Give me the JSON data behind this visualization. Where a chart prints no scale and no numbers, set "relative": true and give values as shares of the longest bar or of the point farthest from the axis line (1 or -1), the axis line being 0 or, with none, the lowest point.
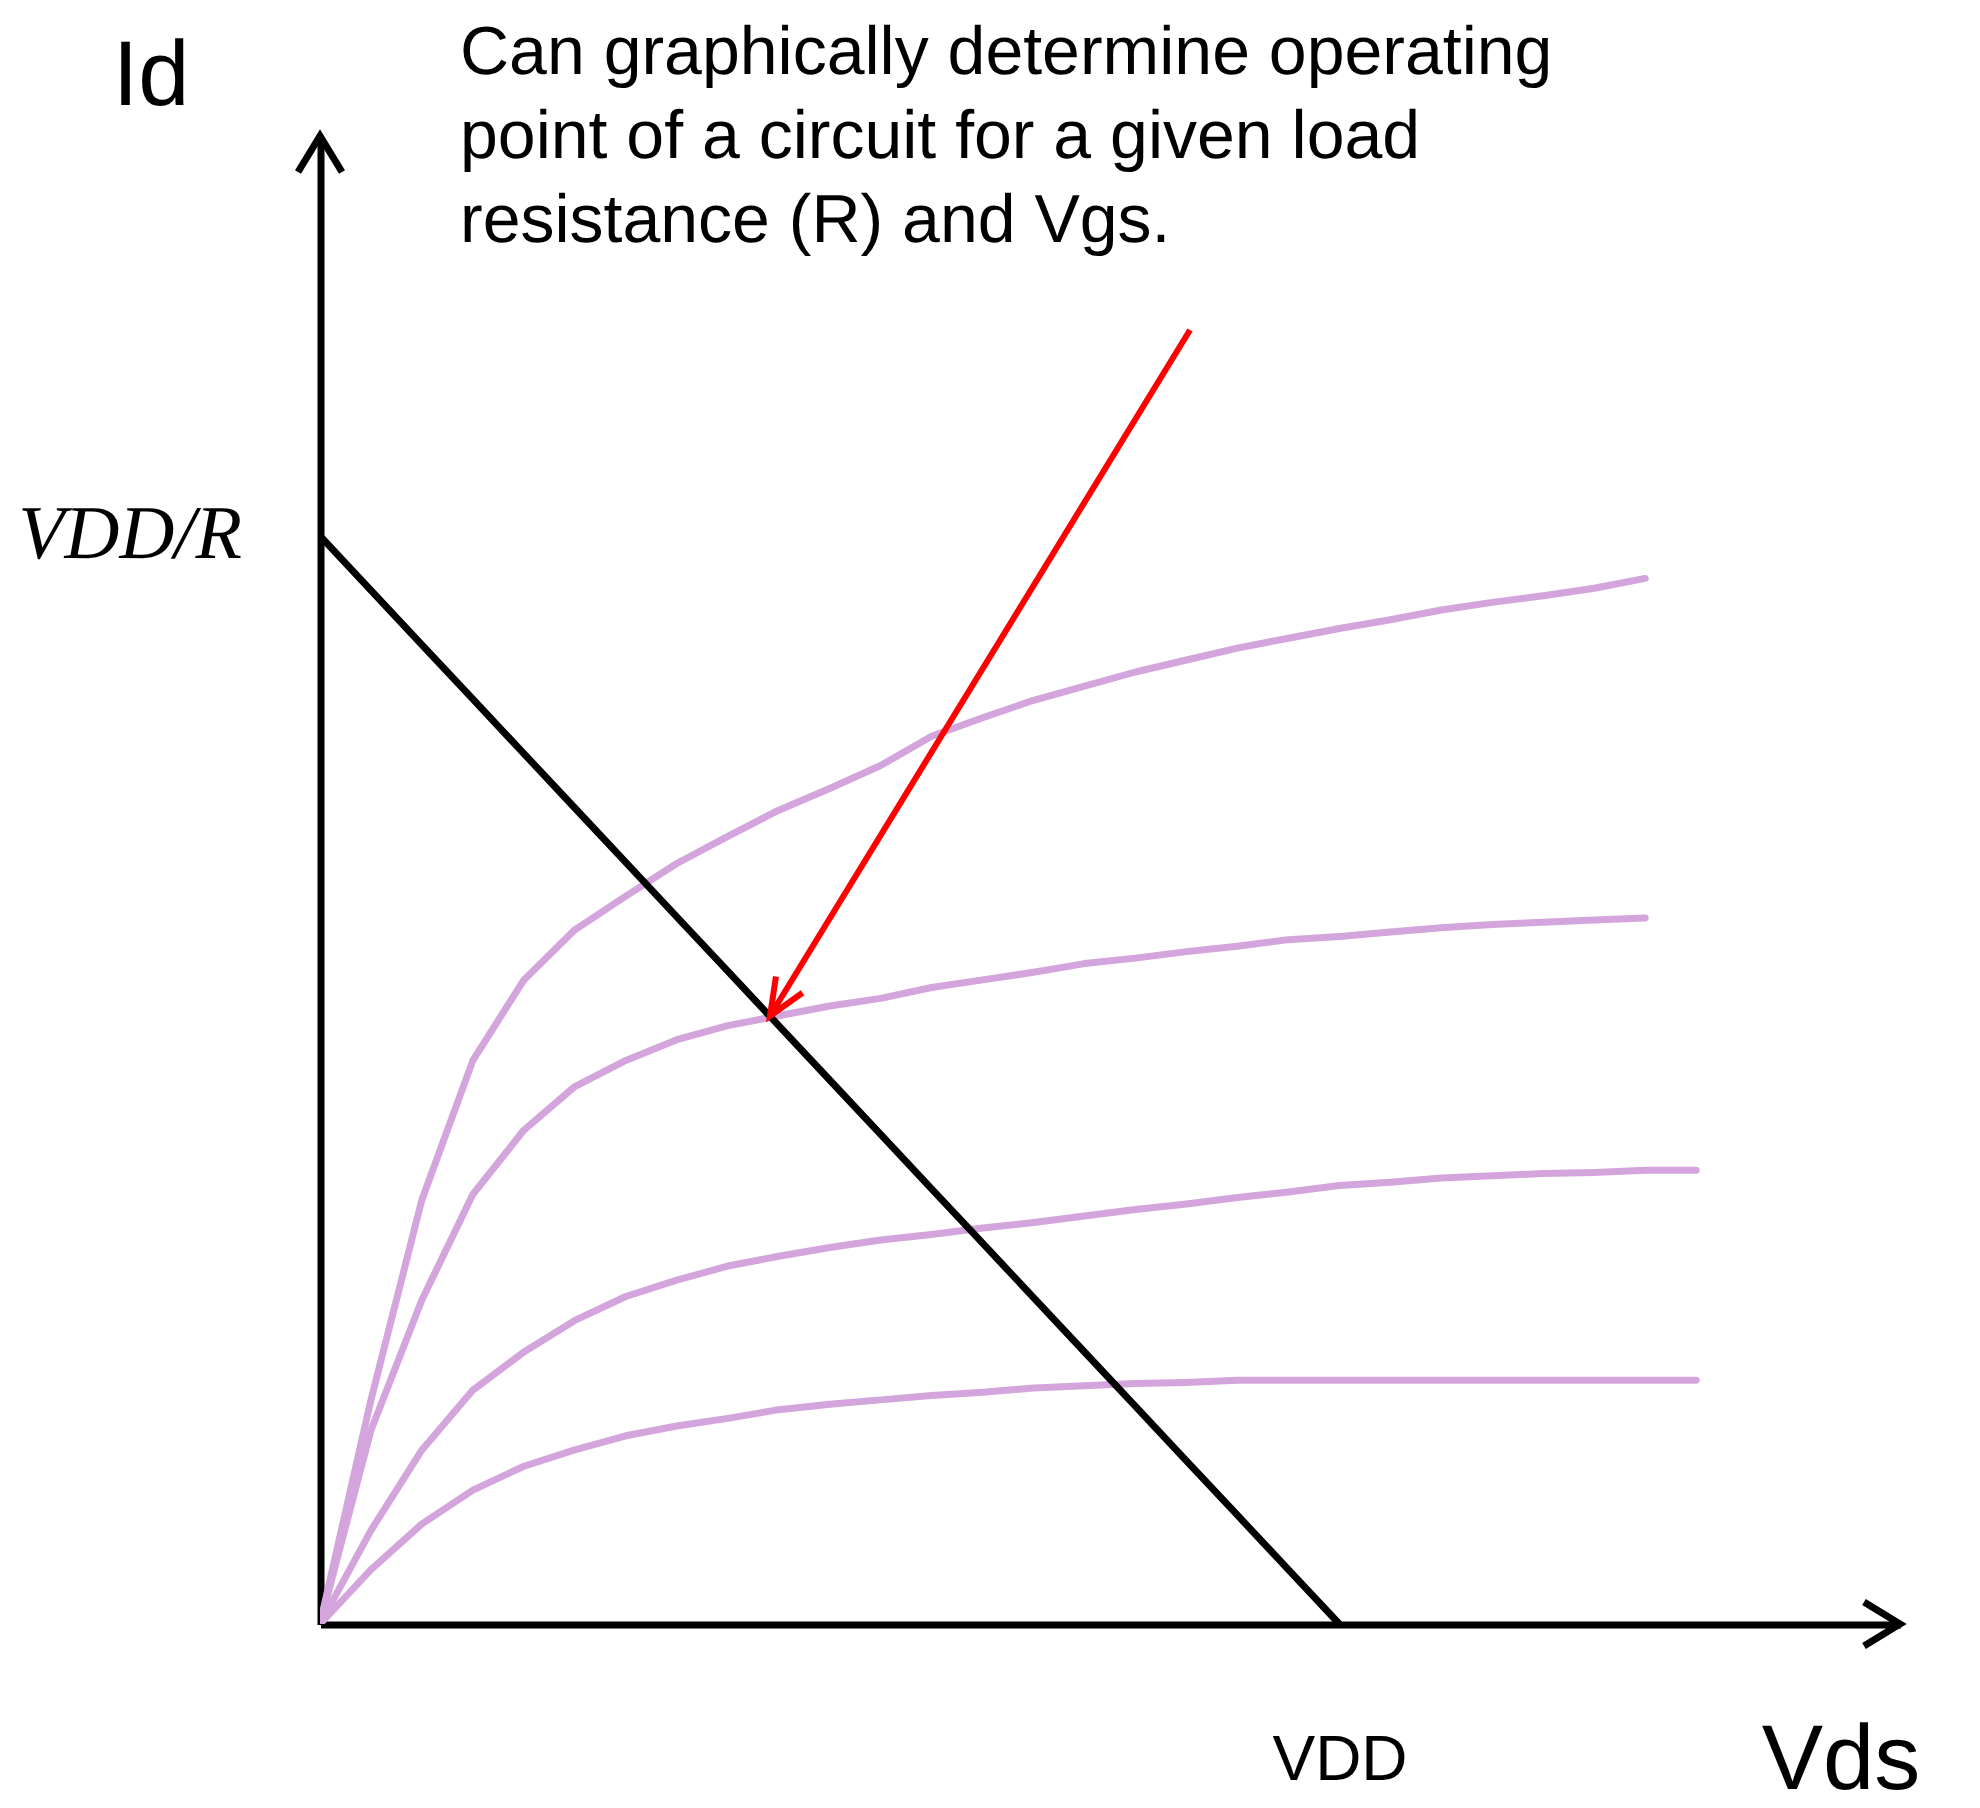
{
  "chart_data": {
    "type": "line",
    "relative": true,
    "xlabel": "Vds",
    "ylabel": "Id",
    "categories": [
      null,
      null,
      null,
      null,
      null,
      null,
      null,
      null,
      null,
      null,
      null,
      null,
      null,
      null,
      null,
      null,
      null,
      null,
      null,
      null,
      null,
      null,
      null,
      null,
      null,
      null,
      null,
      null,
      null,
      null,
      null,
      null
    ],
    "grid": false,
    "legend": false,
    "marker": "none",
    "line_style": "solid",
    "series": [
      {
        "color": "#d4a5dc",
        "values": [
          0,
          0.206,
          0.39,
          0.518,
          0.592,
          0.638,
          0.669,
          0.699,
          0.724,
          0.748,
          0.768,
          0.789,
          0.816,
          0.833,
          0.849,
          0.862,
          0.875,
          0.886,
          0.897,
          0.906,
          0.915,
          0.923,
          0.932,
          0.939,
          0.945,
          0.952,
          0.961,
          null,
          null,
          null,
          null,
          null
        ]
      },
      {
        "color": "#d4a5dc",
        "values": [
          0,
          0.178,
          0.298,
          0.395,
          0.454,
          0.494,
          0.518,
          0.537,
          0.55,
          0.559,
          0.568,
          0.575,
          0.585,
          0.592,
          0.599,
          0.607,
          0.612,
          0.618,
          0.623,
          0.629,
          0.632,
          0.636,
          0.64,
          0.643,
          0.645,
          0.647,
          0.649,
          null,
          null,
          null,
          null,
          null
        ]
      },
      {
        "color": "#d4a5dc",
        "values": [
          0,
          0.086,
          0.16,
          0.215,
          0.25,
          0.279,
          0.301,
          0.316,
          0.329,
          0.338,
          0.346,
          0.353,
          0.358,
          0.364,
          0.369,
          0.375,
          0.381,
          0.386,
          0.392,
          0.397,
          0.403,
          0.406,
          0.41,
          0.412,
          0.414,
          0.415,
          0.417,
          0.417,
          null,
          null,
          null,
          null
        ]
      },
      {
        "color": "#d4a5dc",
        "values": [
          0,
          0.05,
          0.092,
          0.123,
          0.145,
          0.16,
          0.173,
          0.182,
          0.189,
          0.197,
          0.202,
          0.206,
          0.21,
          0.213,
          0.217,
          0.219,
          0.221,
          0.222,
          0.224,
          0.224,
          0.224,
          0.224,
          0.224,
          0.224,
          0.224,
          0.224,
          0.224,
          0.224,
          null,
          null,
          null,
          null
        ]
      },
      {
        "color": "#000000",
        "values": [
          1,
          0.95,
          0.9,
          0.85,
          0.8,
          0.75,
          0.7,
          0.65,
          0.6,
          0.55,
          0.5,
          0.45,
          0.4,
          0.35,
          0.3,
          0.25,
          0.2,
          0.15,
          0.1,
          0.05,
          0,
          null,
          null,
          null,
          null,
          null,
          null,
          null,
          null,
          null,
          null,
          null
        ]
      }
    ],
    "annotations": [
      "VDD/R",
      "VDD",
      "Can graphically determine operating point of a circuit for a given load resistance (R) and Vgs."
    ]
  }
}
